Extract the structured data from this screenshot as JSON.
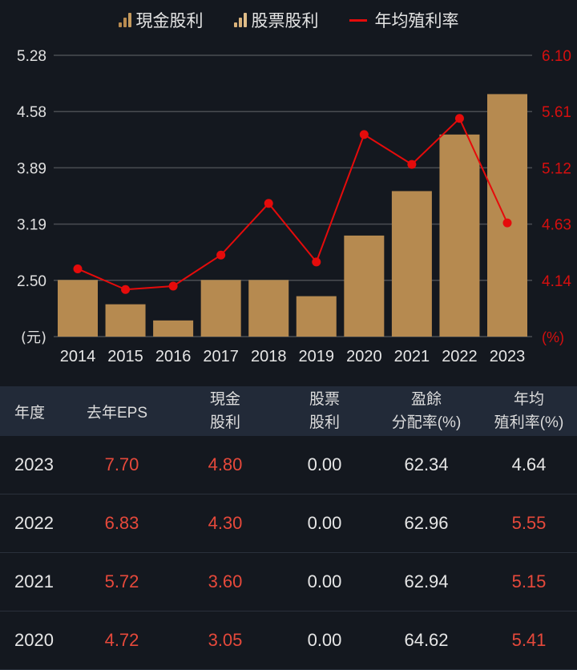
{
  "legend": {
    "items": [
      {
        "label": "現金股利",
        "icon": "bar-chart-icon",
        "colors": [
          "#b88a4f",
          "#b88a4f",
          "#c49a5e"
        ]
      },
      {
        "label": "股票股利",
        "icon": "bar-chart-icon",
        "colors": [
          "#d9b27a",
          "#d9b27a",
          "#e0bd89"
        ]
      },
      {
        "label": "年均殖利率",
        "icon": "line-icon",
        "color": "#e50b0b"
      }
    ]
  },
  "chart_data": {
    "type": "bar",
    "title": "",
    "categories": [
      "2014",
      "2015",
      "2016",
      "2017",
      "2018",
      "2019",
      "2020",
      "2021",
      "2022",
      "2023"
    ],
    "series": [
      {
        "name": "現金股利",
        "type": "bar",
        "axis": "left",
        "color": "#b68a50",
        "values": [
          2.5,
          2.2,
          2.0,
          2.5,
          2.5,
          2.3,
          3.05,
          3.6,
          4.3,
          4.8
        ]
      },
      {
        "name": "股票股利",
        "type": "bar",
        "axis": "left",
        "color": "#d9b27a",
        "values": [
          0,
          0,
          0,
          0,
          0,
          0,
          0,
          0,
          0,
          0
        ]
      },
      {
        "name": "年均殖利率",
        "type": "line",
        "axis": "right",
        "color": "#e50b0b",
        "values": [
          4.24,
          4.06,
          4.09,
          4.36,
          4.81,
          4.3,
          5.41,
          5.15,
          5.55,
          4.64
        ]
      }
    ],
    "left_axis": {
      "unit_label": "(元)",
      "ticks": [
        "5.28",
        "4.58",
        "3.89",
        "3.19",
        "2.50"
      ],
      "ylim": [
        1.8,
        5.28
      ]
    },
    "right_axis": {
      "unit_label": "(%)",
      "ticks": [
        "6.10",
        "5.61",
        "5.12",
        "4.63",
        "4.14"
      ],
      "ylim": [
        3.65,
        6.1
      ],
      "color": "#d60f0f"
    },
    "xlabel": "",
    "ylabel": "元",
    "grid": true,
    "legend_position": "top"
  },
  "table": {
    "headers": [
      {
        "line1": "年度",
        "line2": ""
      },
      {
        "line1": "去年EPS",
        "line2": ""
      },
      {
        "line1": "現金",
        "line2": "股利"
      },
      {
        "line1": "股票",
        "line2": "股利"
      },
      {
        "line1": "盈餘",
        "line2": "分配率(%)"
      },
      {
        "line1": "年均",
        "line2": "殖利率(%)"
      }
    ],
    "rows": [
      {
        "year": "2023",
        "eps": "7.70",
        "cash": "4.80",
        "stock": "0.00",
        "payout": "62.34",
        "yield": "4.64",
        "yield_red": false
      },
      {
        "year": "2022",
        "eps": "6.83",
        "cash": "4.30",
        "stock": "0.00",
        "payout": "62.96",
        "yield": "5.55",
        "yield_red": true
      },
      {
        "year": "2021",
        "eps": "5.72",
        "cash": "3.60",
        "stock": "0.00",
        "payout": "62.94",
        "yield": "5.15",
        "yield_red": true
      },
      {
        "year": "2020",
        "eps": "4.72",
        "cash": "3.05",
        "stock": "0.00",
        "payout": "64.62",
        "yield": "5.41",
        "yield_red": true
      }
    ]
  }
}
